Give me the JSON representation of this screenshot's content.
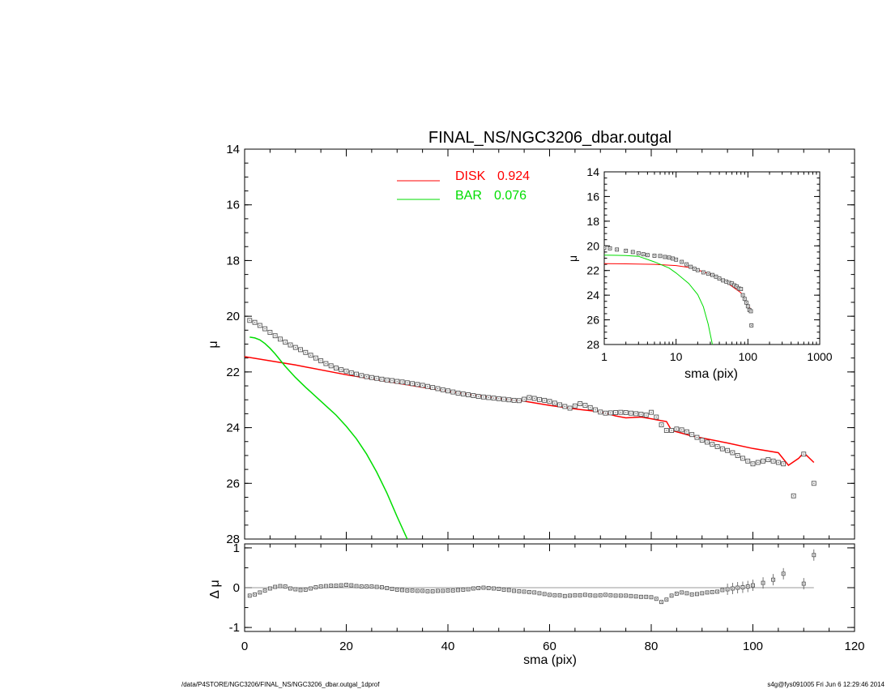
{
  "title": "FINAL_NS/NGC3206_dbar.outgal",
  "footer_left": "/data/P4STORE/NGC3206/FINAL_NS/NGC3206_dbar.outgal_1dprof",
  "footer_right": "s4g@fys091005  Fri Jun  6 12:29:46 2014",
  "colors": {
    "disk": "#ff0000",
    "bar": "#00dd00",
    "data": "#555555",
    "axis": "#000000"
  },
  "legend": [
    {
      "label": "DISK",
      "value": "0.924",
      "color": "#ff0000"
    },
    {
      "label": "BAR",
      "value": "0.076",
      "color": "#00dd00"
    }
  ],
  "chart_data": [
    {
      "name": "main-profile",
      "type": "scatter",
      "xlabel": "",
      "ylabel": "μ",
      "xlim": [
        0,
        120
      ],
      "ylim": [
        28,
        14
      ],
      "y_reversed": true,
      "xticks": [],
      "yticks": [
        14,
        16,
        18,
        20,
        22,
        24,
        26,
        28
      ],
      "series": [
        {
          "name": "data",
          "x": [
            1,
            2,
            3,
            4,
            5,
            6,
            7,
            8,
            9,
            10,
            11,
            12,
            13,
            14,
            15,
            16,
            17,
            18,
            19,
            20,
            21,
            22,
            23,
            24,
            25,
            26,
            27,
            28,
            29,
            30,
            31,
            32,
            33,
            34,
            35,
            36,
            37,
            38,
            39,
            40,
            41,
            42,
            43,
            44,
            45,
            46,
            47,
            48,
            49,
            50,
            51,
            52,
            53,
            54,
            55,
            56,
            57,
            58,
            59,
            60,
            61,
            62,
            63,
            64,
            65,
            66,
            67,
            68,
            69,
            70,
            71,
            72,
            73,
            74,
            75,
            76,
            77,
            78,
            79,
            80,
            81,
            82,
            83,
            84,
            85,
            86,
            87,
            88,
            89,
            90,
            91,
            92,
            93,
            94,
            95,
            96,
            97,
            98,
            99,
            100,
            101,
            102,
            103,
            104,
            105,
            106,
            108,
            110,
            112
          ],
          "values": [
            20.15,
            20.22,
            20.33,
            20.45,
            20.58,
            20.7,
            20.82,
            20.93,
            21.03,
            21.12,
            21.2,
            21.3,
            21.4,
            21.5,
            21.6,
            21.7,
            21.78,
            21.86,
            21.92,
            21.97,
            22.03,
            22.08,
            22.13,
            22.17,
            22.2,
            22.23,
            22.26,
            22.29,
            22.31,
            22.34,
            22.36,
            22.39,
            22.42,
            22.45,
            22.48,
            22.52,
            22.56,
            22.6,
            22.64,
            22.68,
            22.72,
            22.76,
            22.79,
            22.82,
            22.85,
            22.88,
            22.9,
            22.92,
            22.94,
            22.96,
            22.98,
            23,
            23.02,
            23.03,
            22.98,
            22.92,
            22.95,
            22.99,
            23.02,
            23.06,
            23.12,
            23.18,
            23.24,
            23.3,
            23.22,
            23.14,
            23.2,
            23.28,
            23.36,
            23.44,
            23.48,
            23.47,
            23.46,
            23.45,
            23.46,
            23.48,
            23.5,
            23.52,
            23.55,
            23.45,
            23.62,
            23.9,
            24.1,
            24.1,
            24.05,
            24.08,
            24.15,
            24.25,
            24.35,
            24.45,
            24.52,
            24.6,
            24.68,
            24.76,
            24.82,
            24.9,
            25,
            25.1,
            25.2,
            25.3,
            25.25,
            25.2,
            25.15,
            25.2,
            25.25,
            25.3,
            26.45,
            24.95,
            26
          ],
          "color": "#555555"
        },
        {
          "name": "DISK",
          "x": [
            0,
            10,
            20,
            30,
            40,
            50,
            55,
            60,
            63,
            66,
            70,
            73,
            75,
            78,
            80,
            82,
            83,
            84,
            88,
            95,
            100,
            105,
            107,
            109,
            110,
            112
          ],
          "values": [
            21.45,
            21.75,
            22.1,
            22.4,
            22.7,
            22.95,
            23.05,
            23.2,
            23.28,
            23.35,
            23.43,
            23.58,
            23.65,
            23.62,
            23.68,
            23.75,
            23.78,
            24.1,
            24.3,
            24.55,
            24.75,
            24.9,
            25.35,
            25.1,
            24.9,
            25.25
          ],
          "color": "#ff0000"
        },
        {
          "name": "BAR",
          "x": [
            1,
            2,
            3,
            4,
            5,
            6,
            8,
            10,
            12,
            15,
            18,
            20,
            22,
            24,
            26,
            28,
            30,
            32
          ],
          "values": [
            20.75,
            20.78,
            20.85,
            20.98,
            21.15,
            21.35,
            21.8,
            22.2,
            22.55,
            23.05,
            23.55,
            23.95,
            24.4,
            24.95,
            25.6,
            26.35,
            27.2,
            28
          ],
          "color": "#00dd00"
        }
      ]
    },
    {
      "name": "residuals",
      "type": "scatter",
      "xlabel": "sma (pix)",
      "ylabel": "Δ μ",
      "xlim": [
        0,
        120
      ],
      "ylim": [
        -1.1,
        1.1
      ],
      "xticks": [
        0,
        20,
        40,
        60,
        80,
        100,
        120
      ],
      "yticks": [
        -1,
        0,
        1
      ],
      "series": [
        {
          "name": "residual",
          "x": [
            1,
            2,
            3,
            4,
            5,
            6,
            7,
            8,
            9,
            10,
            11,
            12,
            13,
            14,
            15,
            16,
            17,
            18,
            19,
            20,
            21,
            22,
            23,
            24,
            25,
            26,
            27,
            28,
            29,
            30,
            31,
            32,
            33,
            34,
            35,
            36,
            37,
            38,
            39,
            40,
            41,
            42,
            43,
            44,
            45,
            46,
            47,
            48,
            49,
            50,
            51,
            52,
            53,
            54,
            55,
            56,
            57,
            58,
            59,
            60,
            61,
            62,
            63,
            64,
            65,
            66,
            67,
            68,
            69,
            70,
            71,
            72,
            73,
            74,
            75,
            76,
            77,
            78,
            79,
            80,
            81,
            82,
            83,
            84,
            85,
            86,
            87,
            88,
            89,
            90,
            91,
            92,
            93,
            94,
            95,
            96,
            97,
            98,
            99,
            100,
            102,
            104,
            106,
            110,
            112
          ],
          "values": [
            -0.2,
            -0.17,
            -0.12,
            -0.07,
            -0.02,
            0.02,
            0.04,
            0.03,
            -0.02,
            -0.04,
            -0.06,
            -0.05,
            -0.02,
            0.01,
            0.03,
            0.04,
            0.05,
            0.05,
            0.06,
            0.07,
            0.06,
            0.04,
            0.03,
            0.03,
            0.03,
            0.02,
            0.01,
            -0.01,
            -0.03,
            -0.05,
            -0.06,
            -0.07,
            -0.07,
            -0.08,
            -0.08,
            -0.09,
            -0.09,
            -0.08,
            -0.08,
            -0.07,
            -0.07,
            -0.06,
            -0.05,
            -0.04,
            -0.02,
            -0.01,
            0,
            -0.01,
            -0.02,
            -0.03,
            -0.05,
            -0.06,
            -0.08,
            -0.09,
            -0.1,
            -0.11,
            -0.12,
            -0.14,
            -0.16,
            -0.18,
            -0.19,
            -0.19,
            -0.21,
            -0.2,
            -0.19,
            -0.19,
            -0.18,
            -0.19,
            -0.2,
            -0.19,
            -0.18,
            -0.19,
            -0.2,
            -0.2,
            -0.2,
            -0.21,
            -0.22,
            -0.23,
            -0.23,
            -0.24,
            -0.28,
            -0.36,
            -0.3,
            -0.2,
            -0.15,
            -0.12,
            -0.14,
            -0.17,
            -0.16,
            -0.14,
            -0.12,
            -0.11,
            -0.1,
            -0.06,
            -0.04,
            -0.02,
            0,
            0.01,
            0.03,
            0.06,
            0.12,
            0.2,
            0.35,
            0.1,
            0.82
          ],
          "color": "#555555"
        }
      ]
    },
    {
      "name": "inset-profile",
      "type": "scatter",
      "xlabel": "sma (pix)",
      "ylabel": "μ",
      "xscale": "log",
      "xlim": [
        1,
        1000
      ],
      "ylim": [
        28,
        14
      ],
      "y_reversed": true,
      "xticks": [
        1,
        10,
        100,
        1000
      ],
      "yticks": [
        14,
        16,
        18,
        20,
        22,
        24,
        26,
        28
      ],
      "series": [
        {
          "name": "data",
          "x": [
            1,
            1.2,
            1.5,
            2,
            2.5,
            3,
            3.5,
            4,
            5,
            6,
            7,
            8,
            9,
            10,
            12,
            14,
            16,
            18,
            20,
            24,
            28,
            32,
            36,
            40,
            45,
            50,
            55,
            60,
            65,
            70,
            75,
            80,
            85,
            90,
            95,
            100,
            105,
            110,
            112
          ],
          "values": [
            20.15,
            20.2,
            20.3,
            20.4,
            20.5,
            20.6,
            20.68,
            20.75,
            20.8,
            20.82,
            20.9,
            20.95,
            21.03,
            21.12,
            21.3,
            21.5,
            21.7,
            21.86,
            21.97,
            22.15,
            22.26,
            22.36,
            22.5,
            22.65,
            22.8,
            22.9,
            23,
            23.05,
            23.2,
            23.3,
            23.46,
            23.5,
            24,
            24.3,
            24.6,
            24.9,
            25.2,
            25.3,
            26.45
          ],
          "color": "#555555"
        },
        {
          "name": "DISK",
          "x": [
            1,
            2,
            5,
            10,
            15,
            20,
            30,
            50,
            80,
            100,
            112
          ],
          "values": [
            21.45,
            21.46,
            21.5,
            21.6,
            21.75,
            21.95,
            22.3,
            22.95,
            23.8,
            24.75,
            25.25
          ],
          "color": "#ff0000"
        },
        {
          "name": "BAR",
          "x": [
            1,
            2,
            3,
            5,
            8,
            10,
            15,
            20,
            24,
            28,
            32
          ],
          "values": [
            20.75,
            20.78,
            20.85,
            21.3,
            21.8,
            22.2,
            23.05,
            23.95,
            24.95,
            26.35,
            28
          ],
          "color": "#00dd00"
        }
      ]
    }
  ]
}
